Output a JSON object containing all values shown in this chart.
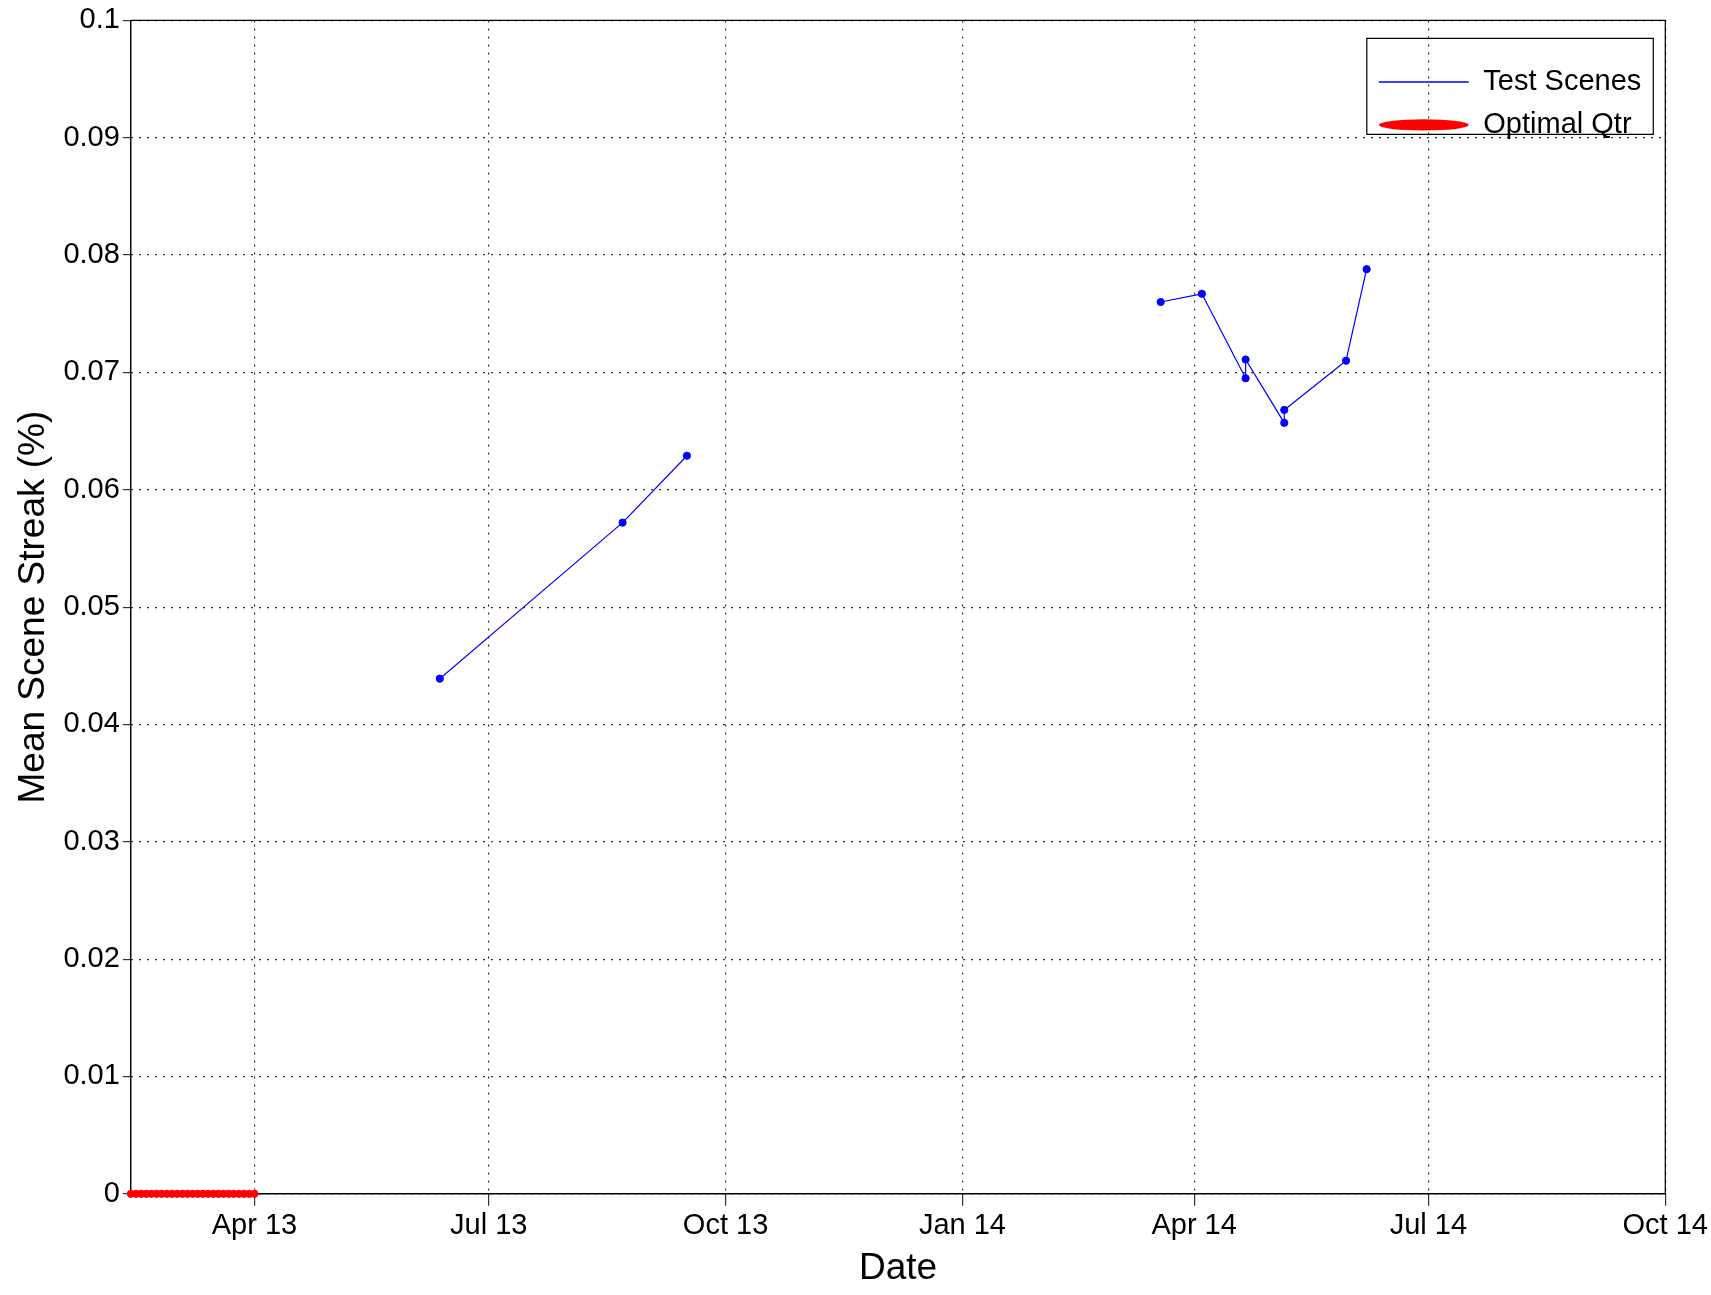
{
  "chart_data": {
    "type": "line",
    "xlabel": "Date",
    "ylabel": "Mean Scene Streak (%)",
    "xlim": [
      "2013-02-12",
      "2014-10-01"
    ],
    "ylim": [
      0,
      0.1
    ],
    "xticks": [
      {
        "value": "2013-04-01",
        "label": "Apr 13"
      },
      {
        "value": "2013-07-01",
        "label": "Jul 13"
      },
      {
        "value": "2013-10-01",
        "label": "Oct 13"
      },
      {
        "value": "2014-01-01",
        "label": "Jan 14"
      },
      {
        "value": "2014-04-01",
        "label": "Apr 14"
      },
      {
        "value": "2014-07-01",
        "label": "Jul 14"
      },
      {
        "value": "2014-10-01",
        "label": "Oct 14"
      }
    ],
    "yticks": [
      0,
      0.01,
      0.02,
      0.03,
      0.04,
      0.05,
      0.06,
      0.07,
      0.08,
      0.09,
      0.1
    ],
    "grid": true,
    "legend": "top right",
    "series": [
      {
        "name": "Test Scenes",
        "color": "#0000ff",
        "marker": "circle",
        "x": [
          "2013-06-12",
          "2013-08-22",
          "2013-09-16",
          "2014-01-20",
          "2014-03-19",
          "2014-04-04",
          "2014-04-21",
          "2014-04-21",
          "2014-05-06",
          "2014-05-06",
          "2014-05-30",
          "2014-06-07"
        ],
        "values": [
          0.0439,
          0.0572,
          0.0629,
          null,
          0.076,
          0.0767,
          0.0695,
          0.0711,
          0.0657,
          0.0668,
          0.071,
          0.0788
        ]
      },
      {
        "name": "Optimal Qtr",
        "type": "scatter",
        "color": "#ff0000",
        "marker": "circle",
        "x": [
          "2013-02-12",
          "2013-02-14",
          "2013-02-16",
          "2013-02-18",
          "2013-02-20",
          "2013-02-22",
          "2013-02-24",
          "2013-02-26",
          "2013-02-28",
          "2013-03-02",
          "2013-03-04",
          "2013-03-06",
          "2013-03-08",
          "2013-03-10",
          "2013-03-12",
          "2013-03-14",
          "2013-03-16",
          "2013-03-18",
          "2013-03-20",
          "2013-03-22",
          "2013-03-24",
          "2013-03-26",
          "2013-03-28",
          "2013-03-30",
          "2013-04-01"
        ],
        "values": [
          0,
          0,
          0,
          0,
          0,
          0,
          0,
          0,
          0,
          0,
          0,
          0,
          0,
          0,
          0,
          0,
          0,
          0,
          0,
          0,
          0,
          0,
          0,
          0,
          0
        ]
      }
    ]
  }
}
